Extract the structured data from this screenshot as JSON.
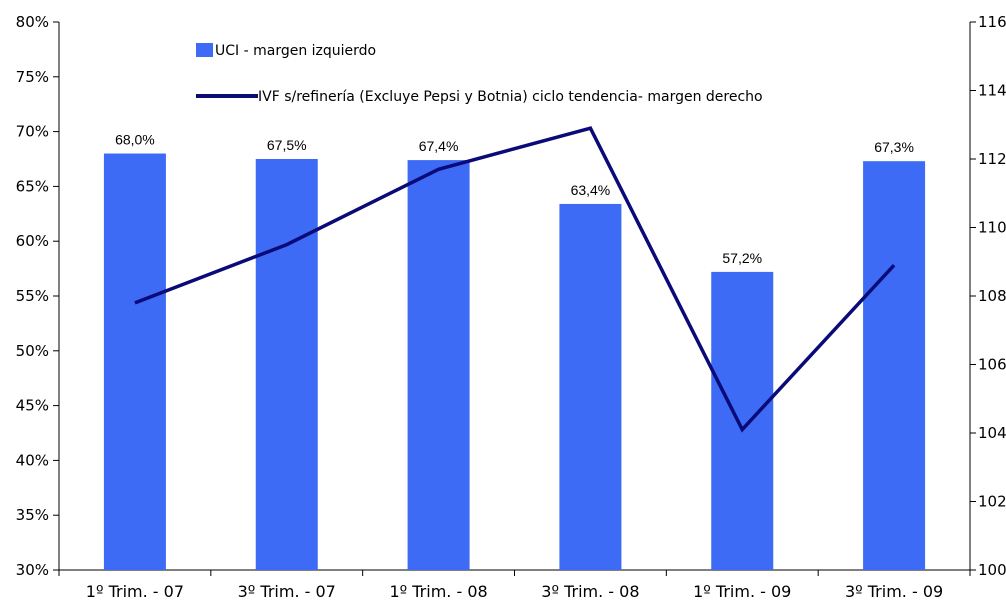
{
  "chart_data": {
    "type": "bar",
    "categories": [
      "1º Trim. - 07",
      "3º Trim. - 07",
      "1º Trim. - 08",
      "3º Trim. - 08",
      "1º Trim. - 09",
      "3º Trim. - 09"
    ],
    "series": [
      {
        "name": "UCI - margen izquierdo",
        "type": "bar",
        "axis": "left",
        "values": [
          68.0,
          67.5,
          67.4,
          63.4,
          57.2,
          67.3
        ],
        "data_labels": [
          "68,0%",
          "67,5%",
          "67,4%",
          "63,4%",
          "57,2%",
          "67,3%"
        ],
        "color": "#3d6bf5"
      },
      {
        "name": "IVF s/refinería (Excluye Pepsi y Botnia) ciclo tendencia- margen derecho",
        "type": "line",
        "axis": "right",
        "values": [
          107.8,
          109.5,
          111.7,
          112.9,
          104.1,
          108.9
        ],
        "color": "#0a0a78"
      }
    ],
    "y_left": {
      "ylim": [
        30,
        80
      ],
      "ticks": [
        30,
        35,
        40,
        45,
        50,
        55,
        60,
        65,
        70,
        75,
        80
      ],
      "tick_labels": [
        "30%",
        "35%",
        "40%",
        "45%",
        "50%",
        "55%",
        "60%",
        "65%",
        "70%",
        "75%",
        "80%"
      ]
    },
    "y_right": {
      "ylim": [
        100,
        116
      ],
      "ticks": [
        100,
        102,
        104,
        106,
        108,
        110,
        112,
        114,
        116
      ],
      "tick_labels": [
        "100",
        "102",
        "104",
        "106",
        "108",
        "110",
        "112",
        "114",
        "116"
      ]
    },
    "legend_position": "top-left",
    "grid": false
  }
}
